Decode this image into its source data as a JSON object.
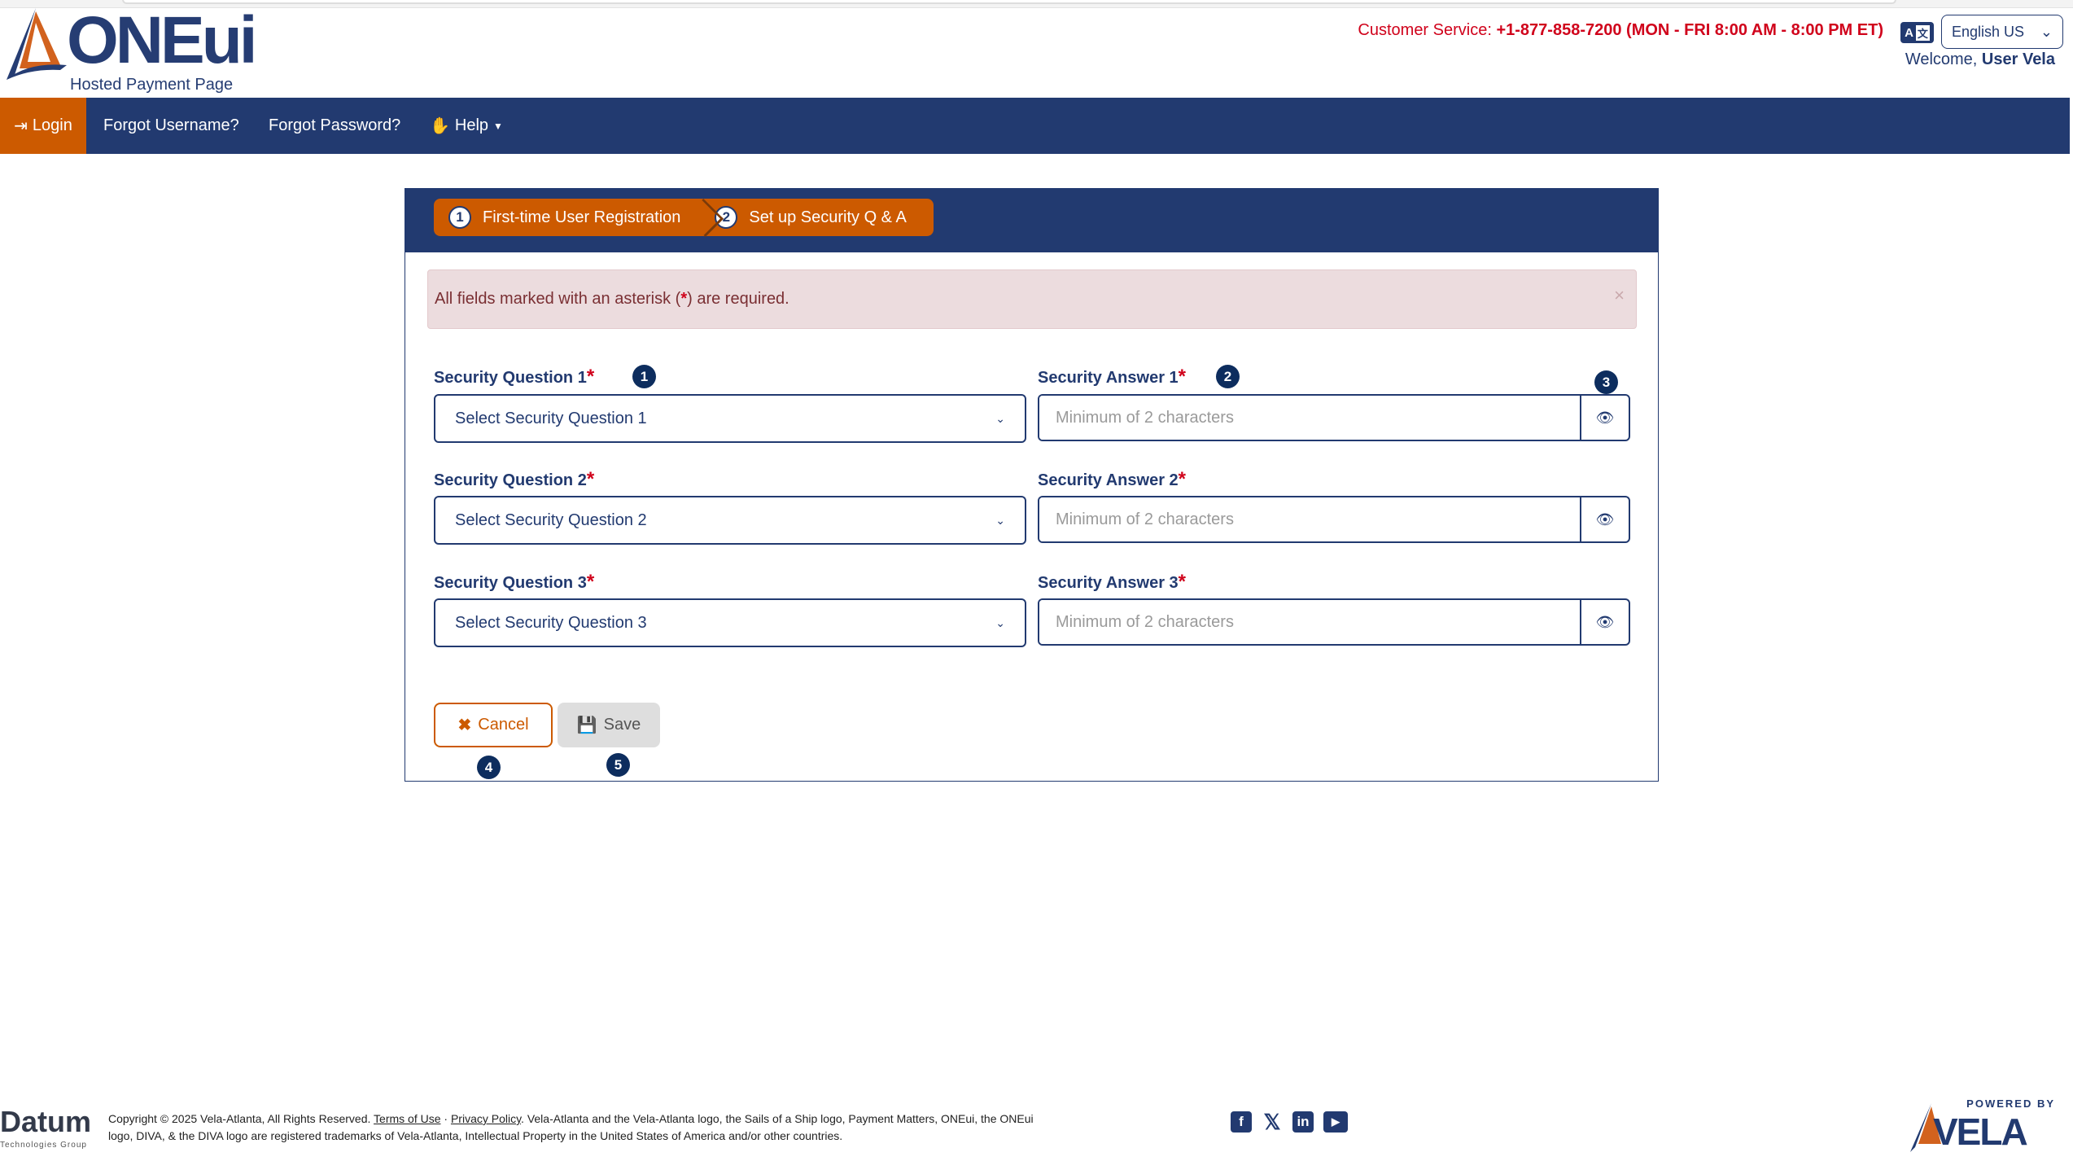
{
  "header": {
    "logo_text": "ONEui",
    "logo_subtitle": "Hosted Payment Page",
    "customer_service_label": "Customer Service:",
    "customer_service_value": "+1-877-858-7200 (MON - FRI 8:00 AM - 8:00 PM ET)",
    "translate_icon": "translate-icon",
    "language": "English US",
    "welcome_label": "Welcome,",
    "user_name": "User Vela"
  },
  "nav": {
    "items": [
      {
        "label": "Login",
        "icon": "sign-in-icon",
        "active": true
      },
      {
        "label": "Forgot Username?"
      },
      {
        "label": "Forgot Password?"
      },
      {
        "label": "Help",
        "icon": "hand-icon"
      }
    ]
  },
  "steps": [
    {
      "number": "1",
      "label": "First-time User Registration"
    },
    {
      "number": "2",
      "label": "Set up Security Q & A"
    }
  ],
  "alert": {
    "text_before": "All fields marked with an asterisk (",
    "star": "*",
    "text_after": ") are required.",
    "close": "×"
  },
  "form": {
    "rows": [
      {
        "question_label": "Security Question 1",
        "question_value": "Select Security Question 1",
        "answer_label": "Security Answer 1",
        "answer_placeholder": "Minimum of 2 characters"
      },
      {
        "question_label": "Security Question 2",
        "question_value": "Select Security Question 2",
        "answer_label": "Security Answer 2",
        "answer_placeholder": "Minimum of 2 characters"
      },
      {
        "question_label": "Security Question 3",
        "question_value": "Select Security Question 3",
        "answer_label": "Security Answer 3",
        "answer_placeholder": "Minimum of 2 characters"
      }
    ],
    "required_mark": "*",
    "cancel_label": "Cancel",
    "save_label": "Save"
  },
  "badges": [
    "1",
    "2",
    "3",
    "4",
    "5"
  ],
  "footer": {
    "datum_logo": "Datum",
    "datum_sub": "Technologies Group",
    "copyright": "Copyright © 2025 Vela-Atlanta, All Rights Reserved.",
    "terms": "Terms of Use",
    "separator": "·",
    "privacy": "Privacy Policy",
    "trademark": ". Vela-Atlanta and the Vela-Atlanta logo, the Sails of a Ship logo, Payment Matters, ONEui, the ONEui logo, DIVA, & the DIVA logo are registered trademarks of Vela-Atlanta, Intellectual Property in the United States of America and/or other countries.",
    "social": [
      "facebook-icon",
      "x-icon",
      "linkedin-icon",
      "youtube-icon"
    ],
    "powered_by": "POWERED BY",
    "vela_logo": "VELA"
  },
  "colors": {
    "navy": "#223a70",
    "orange": "#cc5a00",
    "required": "#d0021b",
    "alert_bg": "#ecdcde"
  }
}
